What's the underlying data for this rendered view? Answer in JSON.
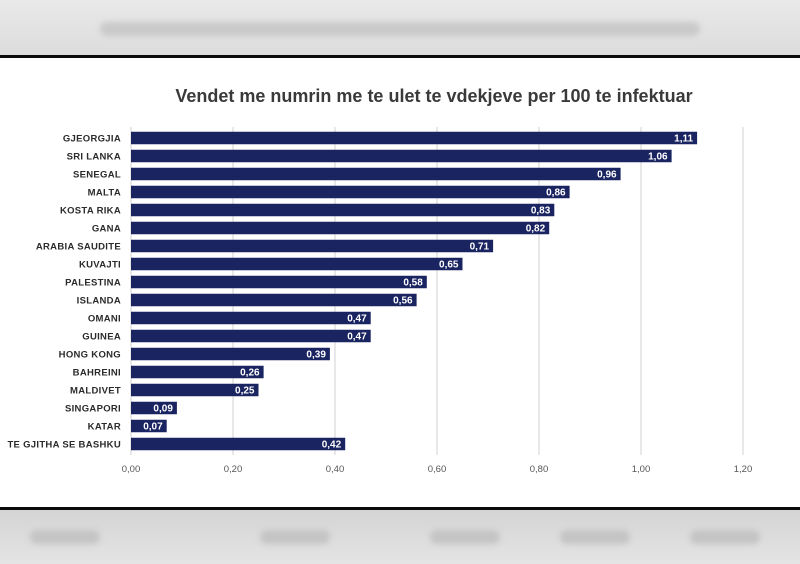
{
  "chart_data": {
    "type": "bar",
    "orientation": "horizontal",
    "title": "Vendet me numrin me te ulet te vdekjeve per 100 te infektuar",
    "categories": [
      "GJEORGJIA",
      "SRI LANKA",
      "SENEGAL",
      "MALTA",
      "KOSTA RIKA",
      "GANA",
      "ARABIA SAUDITE",
      "KUVAJTI",
      "PALESTINA",
      "ISLANDA",
      "OMANI",
      "GUINEA",
      "HONG KONG",
      "BAHREINI",
      "MALDIVET",
      "SINGAPORI",
      "KATAR",
      "TE GJITHA SE BASHKU"
    ],
    "values": [
      1.11,
      1.06,
      0.96,
      0.86,
      0.83,
      0.82,
      0.71,
      0.65,
      0.58,
      0.56,
      0.47,
      0.47,
      0.39,
      0.26,
      0.25,
      0.09,
      0.07,
      0.42
    ],
    "value_labels": [
      "1,11",
      "1,06",
      "0,96",
      "0,86",
      "0,83",
      "0,82",
      "0,71",
      "0,65",
      "0,58",
      "0,56",
      "0,47",
      "0,47",
      "0,39",
      "0,26",
      "0,25",
      "0,09",
      "0,07",
      "0,42"
    ],
    "xlim": [
      0,
      1.2
    ],
    "xticks": [
      0,
      0.2,
      0.4,
      0.6,
      0.8,
      1.0,
      1.2
    ],
    "xtick_labels": [
      "0,00",
      "0,20",
      "0,40",
      "0,60",
      "0,80",
      "1,00",
      "1,20"
    ],
    "grid": true,
    "legend": "none",
    "bar_color": "#1a2461",
    "xlabel": "",
    "ylabel": ""
  }
}
